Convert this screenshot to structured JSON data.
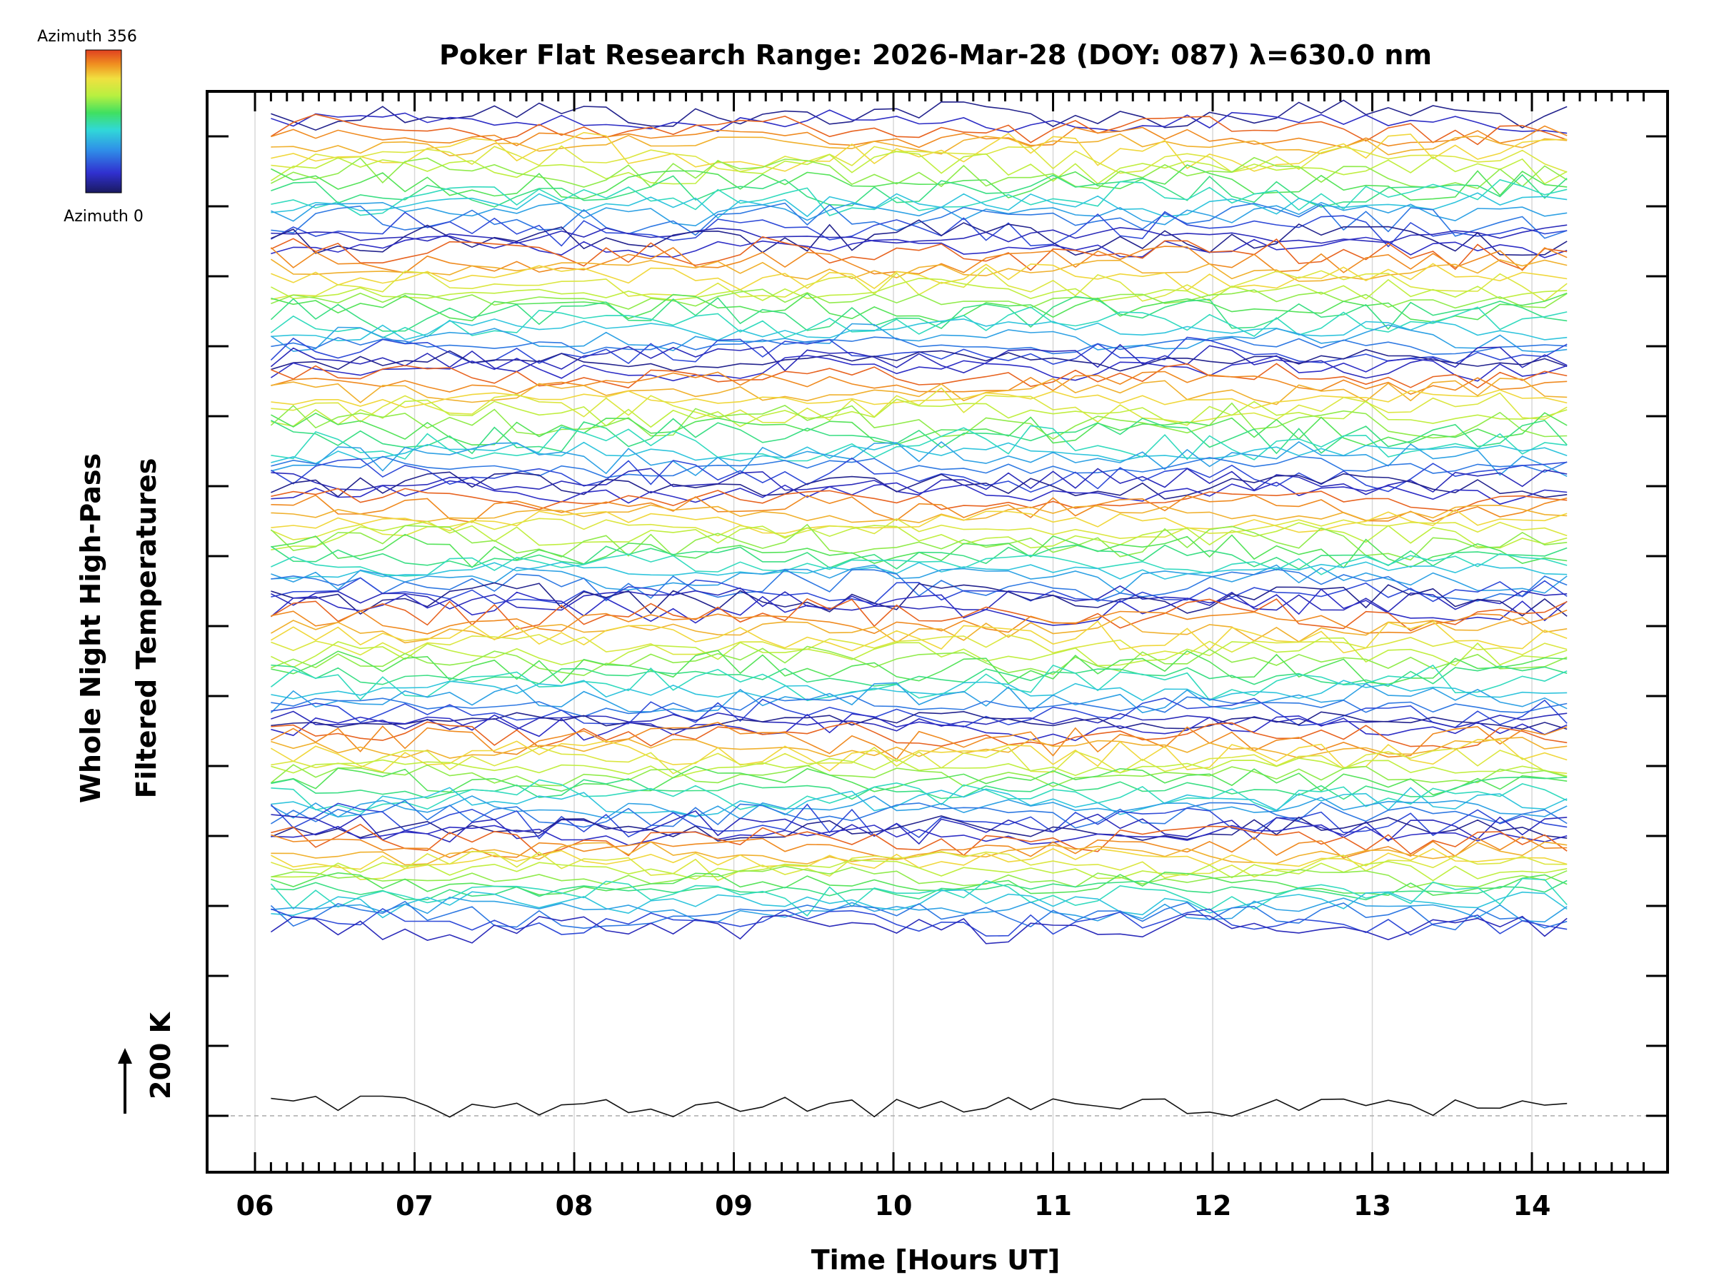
{
  "chart_data": {
    "type": "line",
    "title": "Poker Flat Research Range: 2026-Mar-28 (DOY: 087) λ=630.0 nm",
    "xlabel": "Time [Hours UT]",
    "ylabel_line1": "Whole Night High-Pass",
    "ylabel_line2": "Filtered Temperatures",
    "scale_label": "200 K",
    "scale_arrow": "↑",
    "xlim": [
      5.7,
      14.85
    ],
    "x_ticks": [
      "06",
      "07",
      "08",
      "09",
      "10",
      "11",
      "12",
      "13",
      "14"
    ],
    "x_tick_values": [
      6,
      7,
      8,
      9,
      10,
      11,
      12,
      13,
      14
    ],
    "time_range": [
      6.1,
      14.35
    ],
    "grid": "vertical at each hour",
    "baseline": "dashed line at 200 K reference",
    "colorbar": {
      "top_label": "Azimuth 356",
      "bottom_label": "Azimuth 0",
      "min": 0,
      "max": 356,
      "colormap": [
        "#1a1a60",
        "#3030d0",
        "#2f8fe8",
        "#30d8d8",
        "#40e060",
        "#b8f040",
        "#f0e040",
        "#f09020",
        "#e04020"
      ]
    },
    "series_count": 122,
    "series_description": "Offset stacked traces, one per azimuth sample, colored by azimuth; 7 repeating groups of lines spanning the night",
    "group_count": 7
  }
}
